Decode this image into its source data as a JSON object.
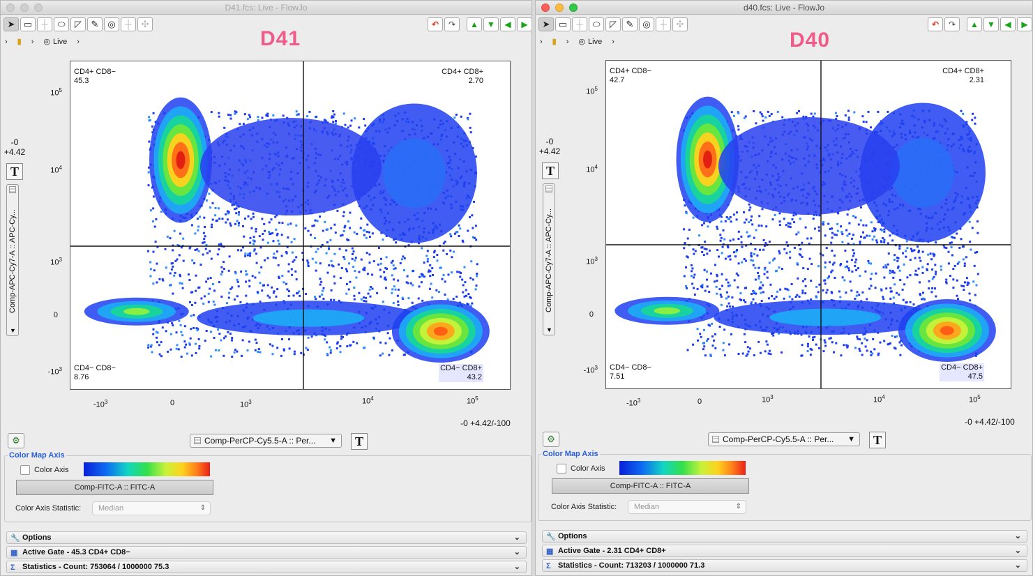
{
  "windows": [
    {
      "id": "left",
      "title": "D41.fcs: Live - FlowJo",
      "overlay_label": "D41",
      "breadcrumb": [
        "Live"
      ],
      "plot": {
        "quadrants": {
          "ul": {
            "name": "CD4+ CD8−",
            "value": "45.3"
          },
          "ur": {
            "name": "CD4+ CD8+",
            "value": "2.70"
          },
          "ll": {
            "name": "CD4− CD8−",
            "value": "8.76"
          },
          "lr": {
            "name": "CD4− CD8+",
            "value": "43.2"
          }
        },
        "y_ticks": [
          "10^5",
          "10^4",
          "10^3",
          "0",
          "-10^3"
        ],
        "x_ticks": [
          "-10^3",
          "0",
          "10^3",
          "10^4",
          "10^5"
        ],
        "y_scale": [
          "-0",
          "+4.42"
        ],
        "x_scale": "-0 +4.42/-100",
        "y_param": "Comp-APC-Cy...",
        "y_param_full": "Comp-APC-Cy7-A :: APC-Cy...",
        "x_param": "Comp-PerCP-Cy5.5-A :: Per..."
      },
      "color_map": {
        "title": "Color Map Axis",
        "checkbox_label": "Color Axis",
        "param_button": "Comp-FITC-A :: FITC-A",
        "statistic_label": "Color Axis Statistic:",
        "statistic_value": "Median"
      },
      "panels": {
        "options": "Options",
        "active_gate": "Active Gate  -  45.3 CD4+ CD8−",
        "statistics": "Statistics  -  Count: 753064 / 1000000      75.3"
      }
    },
    {
      "id": "right",
      "title": "d40.fcs: Live - FlowJo",
      "overlay_label": "D40",
      "breadcrumb": [
        "Live"
      ],
      "plot": {
        "quadrants": {
          "ul": {
            "name": "CD4+ CD8−",
            "value": "42.7"
          },
          "ur": {
            "name": "CD4+ CD8+",
            "value": "2.31"
          },
          "ll": {
            "name": "CD4− CD8−",
            "value": "7.51"
          },
          "lr": {
            "name": "CD4− CD8+",
            "value": "47.5"
          }
        },
        "y_ticks": [
          "10^5",
          "10^4",
          "10^3",
          "0",
          "-10^3"
        ],
        "x_ticks": [
          "-10^3",
          "0",
          "10^3",
          "10^4",
          "10^5"
        ],
        "y_scale": [
          "-0",
          "+4.42"
        ],
        "x_scale": "-0 +4.42/-100",
        "y_param": "Comp-APC-Cy...",
        "y_param_full": "Comp-APC-Cy7-A :: APC-Cy...",
        "x_param": "Comp-PerCP-Cy5.5-A :: Per..."
      },
      "color_map": {
        "title": "Color Map Axis",
        "checkbox_label": "Color Axis",
        "param_button": "Comp-FITC-A :: FITC-A",
        "statistic_label": "Color Axis Statistic:",
        "statistic_value": "Median"
      },
      "panels": {
        "options": "Options",
        "active_gate": "Active Gate  -  2.31 CD4+ CD8+",
        "statistics": "Statistics  -  Count: 713203 / 1000000      71.3"
      }
    }
  ],
  "colors": {
    "accent_title": "#ef5c8a",
    "panel_title": "#2a5fd6"
  },
  "icons": [
    "pointer-icon",
    "rectangle-gate-icon",
    "quadrant-gate-icon",
    "ellipse-gate-icon",
    "polygon-gate-icon",
    "freehand-icon",
    "overlay-icon",
    "bisector-icon",
    "spider-icon",
    "undo-icon",
    "redo-icon",
    "up-arrow-icon",
    "down-arrow-icon",
    "left-arrow-icon",
    "right-arrow-icon",
    "tube-icon",
    "live-gate-icon",
    "text-tool-icon",
    "layout-icon",
    "options-icon",
    "gate-icon",
    "sigma-icon",
    "chevron-down-icon"
  ]
}
